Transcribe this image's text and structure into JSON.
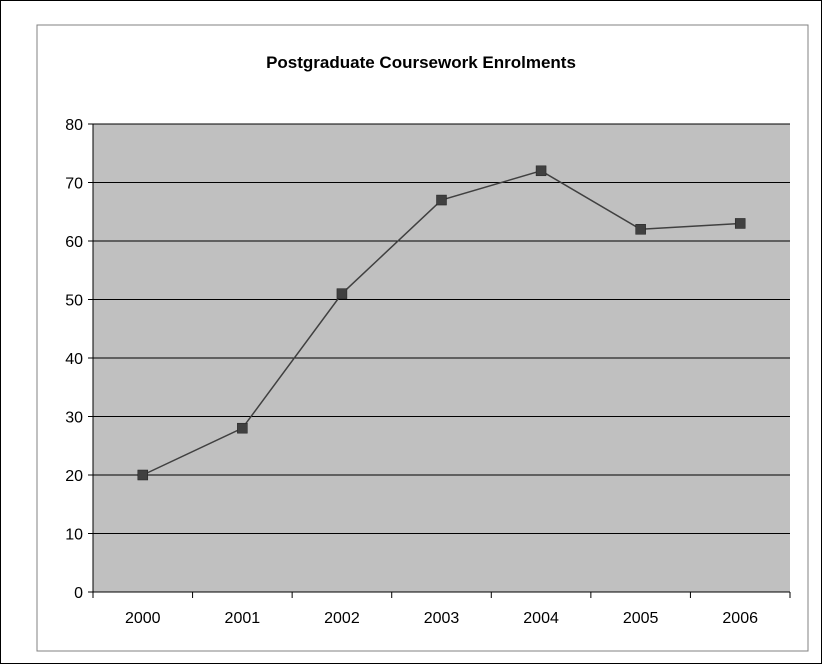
{
  "chart_data": {
    "type": "line",
    "title": "Postgraduate Coursework Enrolments",
    "xlabel": "",
    "ylabel": "",
    "categories": [
      "2000",
      "2001",
      "2002",
      "2003",
      "2004",
      "2005",
      "2006"
    ],
    "series": [
      {
        "values": [
          20,
          28,
          51,
          67,
          72,
          62,
          63
        ]
      }
    ],
    "ylim": [
      0,
      80
    ],
    "ytick_step": 10,
    "grid": true,
    "legend": "none",
    "colors": {
      "plot_background": "#c0c0c0",
      "gridline": "#000000",
      "line": "#404040",
      "marker": "#404040",
      "frame": "#000000"
    }
  }
}
